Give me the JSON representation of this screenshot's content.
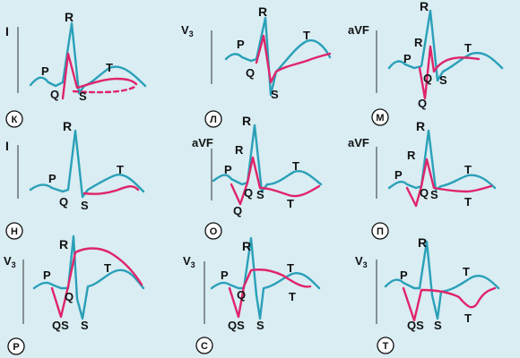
{
  "panels": [
    {
      "id": "k",
      "badge": "К",
      "lead": "I",
      "peaks": {
        "R": "R",
        "P": "P",
        "Q": "Q",
        "S": "S",
        "T": "T"
      }
    },
    {
      "id": "l",
      "badge": "Л",
      "lead": "V3",
      "peaks": {
        "R": "R",
        "P": "P",
        "Q": "Q",
        "S": "S",
        "T": "T"
      }
    },
    {
      "id": "m",
      "badge": "М",
      "lead": "aVF",
      "peaks": {
        "R": "R",
        "R2": "R",
        "P": "P",
        "Q": "Q",
        "S": "S",
        "T": "T",
        "Q2": "Q"
      }
    },
    {
      "id": "n",
      "badge": "Н",
      "lead": "I",
      "peaks": {
        "R": "R",
        "P": "P",
        "Q": "Q",
        "S": "S",
        "T": "T"
      }
    },
    {
      "id": "o",
      "badge": "О",
      "lead": "aVF",
      "peaks": {
        "R": "R",
        "R2": "R",
        "P": "P",
        "Q": "Q",
        "S": "S",
        "T": "T",
        "T2": "T",
        "Q2": "Q"
      }
    },
    {
      "id": "p",
      "badge": "П",
      "lead": "aVF",
      "peaks": {
        "R": "R",
        "R2": "R",
        "P": "P",
        "Q": "Q",
        "S": "S",
        "T": "T",
        "T2": "T"
      }
    },
    {
      "id": "r",
      "badge": "Р",
      "lead": "V3",
      "peaks": {
        "R": "R",
        "P": "P",
        "Q": "Q",
        "T": "T",
        "QS": "QS",
        "S": "S"
      }
    },
    {
      "id": "s",
      "badge": "С",
      "lead": "V3",
      "peaks": {
        "R": "R",
        "P": "P",
        "Q": "Q",
        "T": "T",
        "T2": "T",
        "QS": "QS",
        "S": "S"
      }
    },
    {
      "id": "t",
      "badge": "Т",
      "lead": "V3",
      "peaks": {
        "R": "R",
        "P": "P",
        "T": "T",
        "T2": "T",
        "QS": "QS",
        "S": "S"
      }
    }
  ],
  "colors": {
    "blue": "#2aa0b8",
    "red": "#e0246a",
    "background": "#d9edf3"
  }
}
